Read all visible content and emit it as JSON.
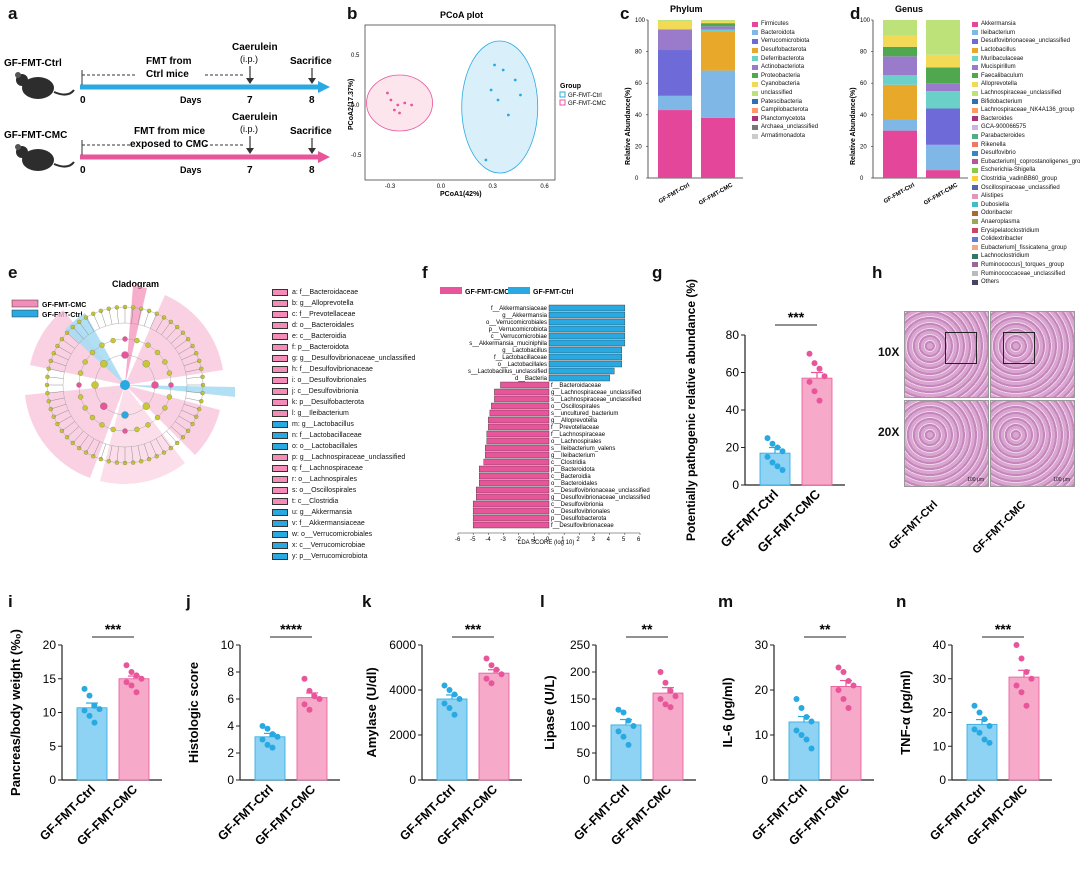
{
  "panels": {
    "a": {
      "label": "a",
      "rows": [
        {
          "group": "GF-FMT-Ctrl",
          "fmt": "FMT from\nCtrl mice",
          "caerulein": "Caerulein",
          "ip": "(i.p.)",
          "sacrifice": "Sacrifice",
          "ticks": [
            "0",
            "7",
            "8"
          ],
          "days": "Days",
          "color": "#29a9e1"
        },
        {
          "group": "GF-FMT-CMC",
          "fmt": "FMT from mice\nexposed to CMC",
          "caerulein": "Caerulein",
          "ip": "(i.p.)",
          "sacrifice": "Sacrifice",
          "ticks": [
            "0",
            "7",
            "8"
          ],
          "days": "Days",
          "color": "#e8559a"
        }
      ]
    },
    "b": {
      "label": "b",
      "title": "PCoA plot",
      "xlabel": "PCoA1(42%)",
      "ylabel": "PCoA2(17.37%)",
      "legend_title": "Group",
      "legend": [
        "GF-FMT-Ctrl",
        "GF-FMT-CMC"
      ],
      "xticks": [
        "-0.3",
        "0.0",
        "0.3",
        "0.6"
      ],
      "yticks": [
        "0.5",
        "0.0",
        "-0.5"
      ]
    },
    "c": {
      "label": "c",
      "title": "Phylum",
      "ylabel": "Relative Abundance(%)",
      "yticks": [
        "0",
        "20",
        "40",
        "60",
        "80",
        "100"
      ],
      "groups": [
        "GF-FMT-Ctrl",
        "GF-FMT-CMC"
      ]
    },
    "d": {
      "label": "d",
      "title": "Genus",
      "ylabel": "Relative Abundance(%)",
      "yticks": [
        "0",
        "20",
        "40",
        "60",
        "80",
        "100"
      ],
      "groups": [
        "GF-FMT-Ctrl",
        "GF-FMT-CMC"
      ]
    },
    "e": {
      "label": "e",
      "title": "Cladogram",
      "legend": [
        "GF-FMT-CMC",
        "GF-FMT-Ctrl"
      ]
    },
    "f": {
      "label": "f",
      "legend": [
        "GF-FMT-CMC",
        "GF-FMT-Ctrl"
      ],
      "xlabel": "LDA SCORE (log 10)",
      "xticks": [
        "-6",
        "-5",
        "-4",
        "-3",
        "-2",
        "-1",
        "0",
        "1",
        "2",
        "3",
        "4",
        "5",
        "6"
      ]
    },
    "g": {
      "label": "g",
      "ylabel": "Potentially pathogenic\nrelative abundance (%)",
      "sig": "***",
      "groups": [
        "GF-FMT-Ctrl",
        "GF-FMT-CMC"
      ],
      "yticks": [
        "0",
        "20",
        "40",
        "60",
        "80"
      ]
    },
    "h": {
      "label": "h",
      "mag1": "10X",
      "mag2": "20X",
      "groups": [
        "GF-FMT-Ctrl",
        "GF-FMT-CMC"
      ],
      "scale": "100 μm"
    },
    "i": {
      "label": "i",
      "ylabel": "Pancreas/body weight (%₀)",
      "sig": "***",
      "yticks": [
        "0",
        "5",
        "10",
        "15",
        "20"
      ]
    },
    "j": {
      "label": "j",
      "ylabel": "Histologic score",
      "sig": "****",
      "yticks": [
        "0",
        "2",
        "4",
        "6",
        "8",
        "10"
      ]
    },
    "k": {
      "label": "k",
      "ylabel": "Amylase (U/dl)",
      "sig": "***",
      "yticks": [
        "0",
        "2000",
        "4000",
        "6000"
      ]
    },
    "l": {
      "label": "l",
      "ylabel": "Lipase (U/L)",
      "sig": "**",
      "yticks": [
        "0",
        "50",
        "100",
        "150",
        "200",
        "250"
      ]
    },
    "m": {
      "label": "m",
      "ylabel": "IL-6 (pg/ml)",
      "sig": "**",
      "yticks": [
        "0",
        "10",
        "20",
        "30"
      ]
    },
    "n": {
      "label": "n",
      "ylabel": "TNF-α (pg/ml)",
      "sig": "***",
      "yticks": [
        "0",
        "10",
        "20",
        "30",
        "40"
      ]
    }
  },
  "colors": {
    "ctrl": "#29a9e1",
    "cmc": "#e8559a",
    "ctrl_fill": "#8fd3f4",
    "cmc_fill": "#f7a9c9"
  },
  "phylum_legend": [
    "Firmicutes",
    "Bacteroidota",
    "Verrucomicrobiota",
    "Desulfobacterota",
    "Deferribacterota",
    "Actinobacteriota",
    "Proteobacteria",
    "Cyanobacteria",
    "unclassified",
    "Patescibacteria",
    "Campilobacterota",
    "Planctomycetota",
    "Archaea_unclassified",
    "Armatimonadota"
  ],
  "genus_legend": [
    "Akkermansia",
    "Ileibacterium",
    "Desulfovibrionaceae_unclassified",
    "Lactobacillus",
    "Muribaculaceae",
    "Mucispirillum",
    "Faecalibaculum",
    "Alloprevotella",
    "Lachnospiraceae_unclassified",
    "Bifidobacterium",
    "Lachnospiraceae_NK4A136_group",
    "Bacteroides",
    "GCA-900066575",
    "Parabacteroides",
    "Rikenella",
    "Desulfovibrio",
    "Eubacterium]_coprostanoligenes_group",
    "Escherichia-Shigella",
    "Clostridia_vadinBB60_group",
    "Oscillospiraceae_unclassified",
    "Alistipes",
    "Dubosiella",
    "Odoribacter",
    "Anaeroplasma",
    "Erysipelatoclostridium",
    "Colidextribacter",
    "Eubacterium]_fissicatena_group",
    "Lachnoclostridium",
    "Ruminococcus]_torques_group",
    "Ruminococcaceae_unclassified",
    "Others"
  ],
  "clado_legend": [
    {
      "t": "a: f__Bacteroidaceae",
      "g": "cmc"
    },
    {
      "t": "b: g__Alloprevotella",
      "g": "cmc"
    },
    {
      "t": "c: f__Prevotellaceae",
      "g": "cmc"
    },
    {
      "t": "d: o__Bacteroidales",
      "g": "cmc"
    },
    {
      "t": "e: c__Bacteroidia",
      "g": "cmc"
    },
    {
      "t": "f: p__Bacteroidota",
      "g": "cmc"
    },
    {
      "t": "g: g__Desulfovibrionaceae_unclassified",
      "g": "cmc"
    },
    {
      "t": "h: f__Desulfovibrionaceae",
      "g": "cmc"
    },
    {
      "t": "i: o__Desulfovibrionales",
      "g": "cmc"
    },
    {
      "t": "j: c__Desulfovibrionia",
      "g": "cmc"
    },
    {
      "t": "k: p__Desulfobacterota",
      "g": "cmc"
    },
    {
      "t": "l: g__Ileibacterium",
      "g": "cmc"
    },
    {
      "t": "m: g__Lactobacillus",
      "g": "ctrl"
    },
    {
      "t": "n: f__Lactobacillaceae",
      "g": "ctrl"
    },
    {
      "t": "o: o__Lactobacillales",
      "g": "ctrl"
    },
    {
      "t": "p: g__Lachnospiraceae_unclassified",
      "g": "cmc"
    },
    {
      "t": "q: f__Lachnospiraceae",
      "g": "cmc"
    },
    {
      "t": "r: o__Lachnospirales",
      "g": "cmc"
    },
    {
      "t": "s: o__Oscillospirales",
      "g": "cmc"
    },
    {
      "t": "t: c__Clostridia",
      "g": "cmc"
    },
    {
      "t": "u: g__Akkermansia",
      "g": "ctrl"
    },
    {
      "t": "v: f__Akkermansiaceae",
      "g": "ctrl"
    },
    {
      "t": "w: o__Verrucomicrobiales",
      "g": "ctrl"
    },
    {
      "t": "x: c__Verrucomicrobiae",
      "g": "ctrl"
    },
    {
      "t": "y: p__Verrucomicrobiota",
      "g": "ctrl"
    }
  ],
  "chart_data": [
    {
      "type": "scatter",
      "id": "b",
      "title": "PCoA plot",
      "xlabel": "PCoA1(42%)",
      "ylabel": "PCoA2(17.37%)",
      "xlim": [
        -0.45,
        0.65
      ],
      "ylim": [
        -0.75,
        0.8
      ],
      "series": [
        {
          "name": "GF-FMT-Ctrl",
          "x": [
            0.3,
            0.35,
            0.42,
            0.45,
            0.38,
            0.28,
            0.32,
            0.25
          ],
          "y": [
            0.4,
            0.35,
            0.25,
            0.1,
            -0.1,
            0.15,
            0.05,
            -0.55
          ]
        },
        {
          "name": "GF-FMT-CMC",
          "x": [
            -0.32,
            -0.3,
            -0.26,
            -0.22,
            -0.28,
            -0.25,
            -0.18
          ],
          "y": [
            0.12,
            0.05,
            0.0,
            0.02,
            -0.05,
            -0.08,
            0.0
          ]
        }
      ]
    },
    {
      "type": "bar",
      "id": "c",
      "stacked": true,
      "title": "Phylum",
      "categories": [
        "GF-FMT-Ctrl",
        "GF-FMT-CMC"
      ],
      "series": [
        {
          "name": "Firmicutes",
          "values": [
            43,
            38
          ]
        },
        {
          "name": "Bacteroidota",
          "values": [
            9,
            30
          ]
        },
        {
          "name": "Verrucomicrobiota",
          "values": [
            29,
            0
          ]
        },
        {
          "name": "Desulfobacterota",
          "values": [
            0,
            25
          ]
        },
        {
          "name": "Deferribacterota",
          "values": [
            0,
            1
          ]
        },
        {
          "name": "Actinobacteriota",
          "values": [
            13,
            2
          ]
        },
        {
          "name": "Proteobacteria",
          "values": [
            0,
            2
          ]
        },
        {
          "name": "Cyanobacteria",
          "values": [
            5,
            1
          ]
        },
        {
          "name": "unclassified",
          "values": [
            1,
            1
          ]
        }
      ]
    },
    {
      "type": "bar",
      "id": "d",
      "stacked": true,
      "title": "Genus",
      "categories": [
        "GF-FMT-Ctrl",
        "GF-FMT-CMC"
      ],
      "series": [
        {
          "name": "Akkermansia",
          "values": [
            30,
            5
          ]
        },
        {
          "name": "Ileibacterium",
          "values": [
            7,
            16
          ]
        },
        {
          "name": "Desulfovibrionaceae_unclassified",
          "values": [
            0,
            23
          ]
        },
        {
          "name": "Lactobacillus",
          "values": [
            22,
            0
          ]
        },
        {
          "name": "Muribaculaceae",
          "values": [
            6,
            11
          ]
        },
        {
          "name": "Faecalibaculum",
          "values": [
            12,
            5
          ]
        },
        {
          "name": "Alloprevotella",
          "values": [
            6,
            10
          ]
        },
        {
          "name": "Lachnospiraceae_unclassified",
          "values": [
            7,
            8
          ]
        },
        {
          "name": "Others",
          "values": [
            10,
            22
          ]
        }
      ]
    },
    {
      "type": "bar",
      "id": "f",
      "orientation": "horizontal",
      "xlabel": "LDA SCORE (log 10)",
      "xlim": [
        -6,
        6
      ],
      "categories": [
        "f__Akkermansiaceae",
        "g__Akkermansia",
        "o__Verrucomicrobiales",
        "p__Verrucomicrobiota",
        "c__Verrucomicrobiae",
        "s__Akkermansia_muciniphila",
        "g__Lactobacillus",
        "f__Lactobacillaceae",
        "o__Lactobacillales",
        "s__Lactobacillus_unclassified",
        "d__Bacteria",
        "f__Bacteroidaceae",
        "g__Lachnospiraceae_unclassified",
        "s__Lachnospiraceae_unclassified",
        "o__Oscillospirales",
        "s__uncultured_bacterium",
        "g__Alloprevotella",
        "f__Prevotellaceae",
        "f__Lachnospiraceae",
        "o__Lachnospirales",
        "s__Ileibacterium_valens",
        "g__Ileibacterium",
        "c__Clostridia",
        "p__Bacteroidota",
        "c__Bacteroidia",
        "o__Bacteroidales",
        "s__Desulfovibrionaceae_unclassified",
        "g__Desulfovibrionaceae_unclassified",
        "c__Desulfovibrionia",
        "o__Desulfovibrionales",
        "p__Desulfobacterota",
        "f__Desulfovibrionaceae"
      ],
      "values": [
        5.0,
        5.0,
        5.0,
        5.0,
        5.0,
        5.0,
        4.8,
        4.8,
        4.8,
        4.3,
        4.0,
        -3.2,
        -3.6,
        -3.6,
        -3.8,
        -3.9,
        -4.0,
        -4.0,
        -4.1,
        -4.1,
        -4.2,
        -4.2,
        -4.3,
        -4.6,
        -4.6,
        -4.6,
        -4.8,
        -4.8,
        -5.0,
        -5.0,
        -5.0,
        -5.0
      ]
    },
    {
      "type": "bar",
      "id": "g",
      "ylabel": "Potentially pathogenic relative abundance (%)",
      "categories": [
        "GF-FMT-Ctrl",
        "GF-FMT-CMC"
      ],
      "values": [
        17,
        57
      ],
      "errors": [
        3,
        3
      ],
      "ylim": [
        0,
        80
      ],
      "points": [
        [
          25,
          22,
          20,
          18,
          15,
          12,
          10,
          8
        ],
        [
          70,
          65,
          62,
          58,
          55,
          50,
          45
        ]
      ]
    },
    {
      "type": "bar",
      "id": "i",
      "ylabel": "Pancreas/body weight (%₀)",
      "categories": [
        "GF-FMT-Ctrl",
        "GF-FMT-CMC"
      ],
      "values": [
        10.7,
        15.0
      ],
      "errors": [
        0.7,
        0.4
      ],
      "ylim": [
        0,
        20
      ],
      "points": [
        [
          13.5,
          12.5,
          11,
          10.5,
          10.3,
          9.5,
          8.5
        ],
        [
          17,
          16,
          15.5,
          15,
          14.5,
          14,
          13
        ]
      ]
    },
    {
      "type": "bar",
      "id": "j",
      "ylabel": "Histologic score",
      "categories": [
        "GF-FMT-Ctrl",
        "GF-FMT-CMC"
      ],
      "values": [
        3.2,
        6.1
      ],
      "errors": [
        0.25,
        0.35
      ],
      "ylim": [
        0,
        10
      ],
      "points": [
        [
          4,
          3.8,
          3.4,
          3.2,
          3,
          2.6,
          2.4
        ],
        [
          7.5,
          6.6,
          6.2,
          6,
          5.6,
          5.2
        ]
      ]
    },
    {
      "type": "bar",
      "id": "k",
      "ylabel": "Amylase (U/dl)",
      "categories": [
        "GF-FMT-Ctrl",
        "GF-FMT-CMC"
      ],
      "values": [
        3600,
        4750
      ],
      "errors": [
        180,
        150
      ],
      "ylim": [
        0,
        6000
      ],
      "points": [
        [
          4200,
          4000,
          3800,
          3600,
          3400,
          3200,
          2900
        ],
        [
          5400,
          5100,
          4900,
          4700,
          4500,
          4300
        ]
      ]
    },
    {
      "type": "bar",
      "id": "l",
      "ylabel": "Lipase (U/L)",
      "categories": [
        "GF-FMT-Ctrl",
        "GF-FMT-CMC"
      ],
      "values": [
        102,
        161
      ],
      "errors": [
        10,
        10
      ],
      "ylim": [
        0,
        250
      ],
      "points": [
        [
          130,
          125,
          110,
          100,
          90,
          80,
          65
        ],
        [
          200,
          180,
          165,
          155,
          150,
          140,
          135
        ]
      ]
    },
    {
      "type": "bar",
      "id": "m",
      "ylabel": "IL-6 (pg/ml)",
      "categories": [
        "GF-FMT-Ctrl",
        "GF-FMT-CMC"
      ],
      "values": [
        12.9,
        20.8
      ],
      "errors": [
        1.2,
        1.3
      ],
      "ylim": [
        0,
        30
      ],
      "points": [
        [
          18,
          16,
          14,
          13,
          11,
          10,
          9,
          7
        ],
        [
          25,
          24,
          22,
          21,
          20,
          18,
          16
        ]
      ]
    },
    {
      "type": "bar",
      "id": "n",
      "ylabel": "TNF-α (pg/ml)",
      "categories": [
        "GF-FMT-Ctrl",
        "GF-FMT-CMC"
      ],
      "values": [
        16.5,
        30.5
      ],
      "errors": [
        1.4,
        2.0
      ],
      "ylim": [
        0,
        40
      ],
      "points": [
        [
          22,
          20,
          18,
          16,
          15,
          14,
          12,
          11
        ],
        [
          40,
          36,
          32,
          30,
          28,
          26,
          22
        ]
      ]
    }
  ]
}
